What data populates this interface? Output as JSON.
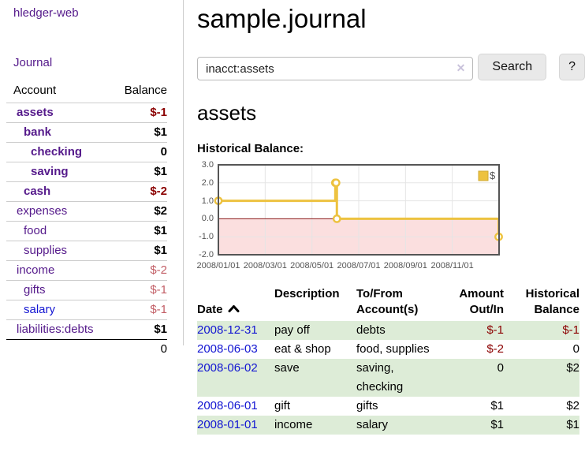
{
  "sidebar": {
    "app_title": "hledger-web",
    "journal_link": "Journal",
    "accounts_header": {
      "account": "Account",
      "balance": "Balance"
    },
    "accounts": [
      {
        "name": "assets",
        "depth": 0,
        "in_current": true,
        "balance": "$-1",
        "negative": "strong",
        "unvisited": false
      },
      {
        "name": "bank",
        "depth": 1,
        "in_current": true,
        "balance": "$1",
        "negative": null,
        "unvisited": false
      },
      {
        "name": "checking",
        "depth": 2,
        "in_current": true,
        "balance": "0",
        "negative": null,
        "unvisited": false
      },
      {
        "name": "saving",
        "depth": 2,
        "in_current": true,
        "balance": "$1",
        "negative": null,
        "unvisited": false
      },
      {
        "name": "cash",
        "depth": 1,
        "in_current": true,
        "balance": "$-2",
        "negative": "strong",
        "unvisited": false
      },
      {
        "name": "expenses",
        "depth": 0,
        "in_current": false,
        "balance": "$2",
        "negative": null,
        "unvisited": false
      },
      {
        "name": "food",
        "depth": 1,
        "in_current": false,
        "balance": "$1",
        "negative": null,
        "unvisited": false
      },
      {
        "name": "supplies",
        "depth": 1,
        "in_current": false,
        "balance": "$1",
        "negative": null,
        "unvisited": false
      },
      {
        "name": "income",
        "depth": 0,
        "in_current": false,
        "balance": "$-2",
        "negative": "soft",
        "unvisited": false
      },
      {
        "name": "gifts",
        "depth": 1,
        "in_current": false,
        "balance": "$-1",
        "negative": "soft",
        "unvisited": false
      },
      {
        "name": "salary",
        "depth": 1,
        "in_current": false,
        "balance": "$-1",
        "negative": "soft",
        "unvisited": true
      },
      {
        "name": "liabilities:debts",
        "depth": 0,
        "in_current": false,
        "balance": "$1",
        "negative": null,
        "unvisited": false
      }
    ],
    "total": "0"
  },
  "main": {
    "title": "sample.journal",
    "search": {
      "query": "inacct:assets",
      "clear_icon": "✕",
      "button": "Search",
      "help_button": "?"
    },
    "account_heading": "assets",
    "chart_label": "Historical Balance:",
    "register": {
      "headers": {
        "date": "Date",
        "description": "Description",
        "accounts": "To/From\nAccount(s)",
        "amount": "Amount\nOut/In",
        "balance": "Historical\nBalance"
      },
      "rows": [
        {
          "date": "2008-12-31",
          "description": "pay off",
          "accounts": "debts",
          "amount": "$-1",
          "balance": "$-1"
        },
        {
          "date": "2008-06-03",
          "description": "eat & shop",
          "accounts": "food, supplies",
          "amount": "$-2",
          "balance": "0"
        },
        {
          "date": "2008-06-02",
          "description": "save",
          "accounts": "saving,\nchecking",
          "amount": "0",
          "balance": "$2"
        },
        {
          "date": "2008-06-01",
          "description": "gift",
          "accounts": "gifts",
          "amount": "$1",
          "balance": "$2"
        },
        {
          "date": "2008-01-01",
          "description": "income",
          "accounts": "salary",
          "amount": "$1",
          "balance": "$1"
        }
      ]
    }
  },
  "chart_data": {
    "type": "line",
    "step": true,
    "title": "Historical Balance:",
    "series": [
      {
        "name": "$",
        "color": "#edc240",
        "points": [
          [
            "2008-01-01",
            1
          ],
          [
            "2008-06-01",
            2
          ],
          [
            "2008-06-02",
            2
          ],
          [
            "2008-06-03",
            0
          ],
          [
            "2008-12-31",
            -1
          ]
        ]
      }
    ],
    "y_tick_labels": [
      "3.0",
      "2.0",
      "1.0",
      "0.0",
      "-1.0",
      "-2.0"
    ],
    "x_ticks": [
      "2008/01/01",
      "2008/03/01",
      "2008/05/01",
      "2008/07/01",
      "2008/09/01",
      "2008/11/01"
    ],
    "ylim": [
      -2,
      3
    ],
    "xlim_months": [
      0,
      12
    ],
    "grid": true,
    "legend_position": "top-right",
    "zero_line_color": "#8b1a1a",
    "negative_fill": "#fbdfdf",
    "marker": "open-circle"
  },
  "colors": {
    "link_visited_purple": "#551a8b",
    "link_blue": "#1316d2",
    "negative_strong": "#8b0000",
    "negative_soft": "#c25e66",
    "row_shade_green": "#ddecd7",
    "series_gold": "#edc240",
    "chart_negative_fill": "#fbdfdf",
    "chart_zero_line": "#8b1a1a"
  }
}
